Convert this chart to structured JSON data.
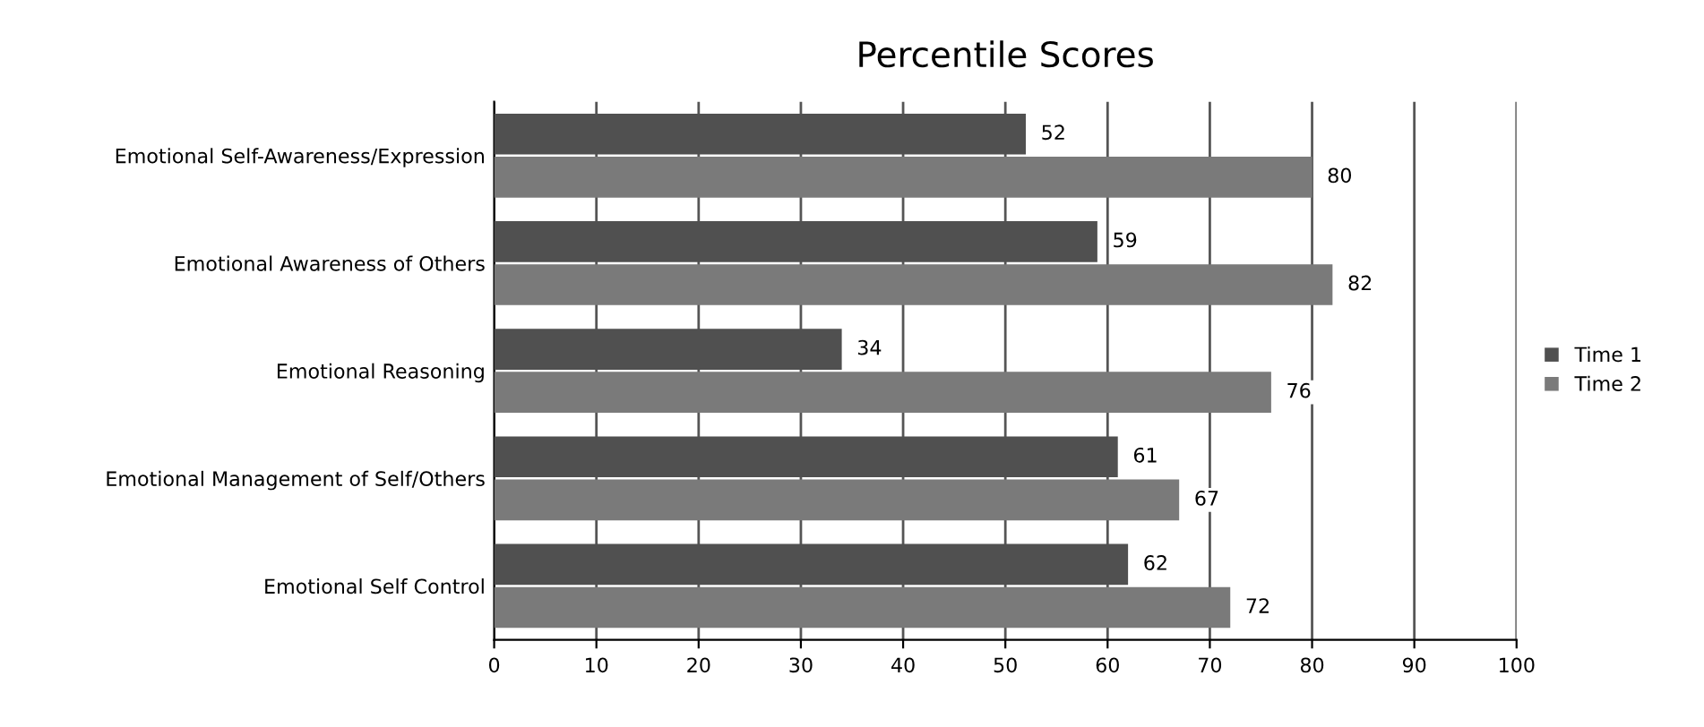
{
  "chart_data": {
    "type": "bar",
    "orientation": "horizontal",
    "title": "Percentile Scores",
    "categories": [
      "Emotional Self-Awareness/Expression",
      "Emotional Awareness of Others",
      "Emotional Reasoning",
      "Emotional Management of Self/Others",
      "Emotional Self Control"
    ],
    "series": [
      {
        "name": "Time 1",
        "color": "#505050",
        "values": [
          52,
          59,
          34,
          61,
          62
        ]
      },
      {
        "name": "Time 2",
        "color": "#7a7a7a",
        "values": [
          80,
          82,
          76,
          67,
          72
        ]
      }
    ],
    "xlim": [
      0,
      100
    ],
    "xticks": [
      0,
      10,
      20,
      30,
      40,
      50,
      60,
      70,
      80,
      90,
      100
    ],
    "grid": "x",
    "legend": "right",
    "data_labels": true
  }
}
